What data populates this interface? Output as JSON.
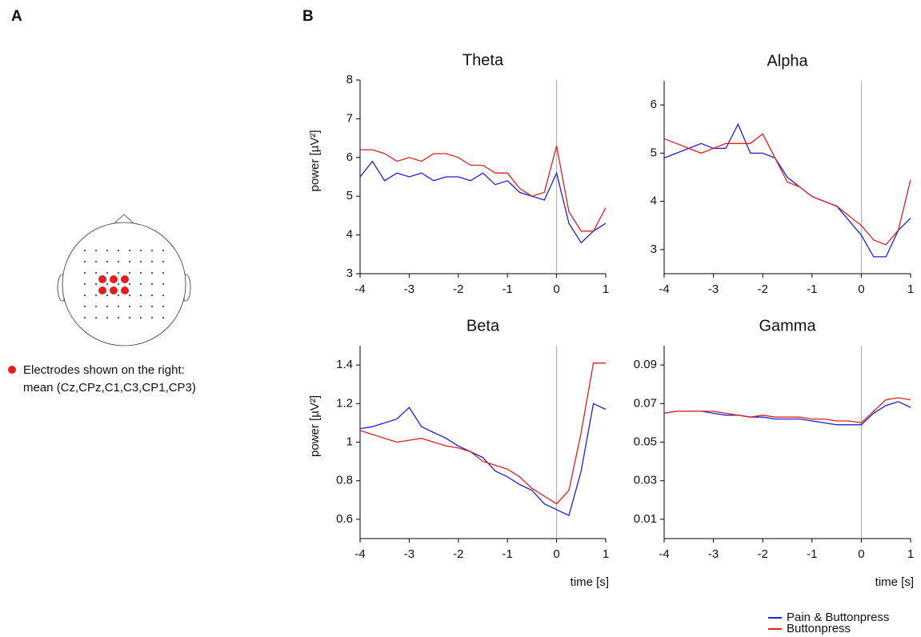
{
  "panel_a": {
    "label": "A",
    "note": [
      "Electrodes shown on the right:",
      "mean (Cz,CPz,C1,C3,CP1,CP3)"
    ]
  },
  "panel_b": {
    "label": "B"
  },
  "chart_data": [
    {
      "type": "line",
      "title": "Theta",
      "ylabel": "power [µV²]",
      "x": [
        -4,
        -3.75,
        -3.5,
        -3.25,
        -3,
        -2.75,
        -2.5,
        -2.25,
        -2,
        -1.75,
        -1.5,
        -1.25,
        -1,
        -0.75,
        -0.5,
        -0.25,
        0,
        0.25,
        0.5,
        0.75,
        1
      ],
      "xlim": [
        -4,
        1
      ],
      "xticks": [
        -4,
        -3,
        -2,
        -1,
        0,
        1
      ],
      "ylim": [
        3,
        8
      ],
      "yticks": [
        3,
        4,
        5,
        6,
        7,
        8
      ],
      "vline": 0,
      "series": [
        {
          "name": "Pain & Buttonpress",
          "color": "#1f1fd6",
          "values": [
            5.5,
            5.9,
            5.4,
            5.6,
            5.5,
            5.6,
            5.4,
            5.5,
            5.5,
            5.4,
            5.6,
            5.3,
            5.4,
            5.1,
            5.0,
            4.9,
            5.6,
            4.3,
            3.8,
            4.1,
            4.3
          ]
        },
        {
          "name": "Buttonpress",
          "color": "#e02020",
          "values": [
            6.2,
            6.2,
            6.1,
            5.9,
            6.0,
            5.9,
            6.1,
            6.1,
            6.0,
            5.8,
            5.8,
            5.6,
            5.6,
            5.2,
            5.0,
            5.1,
            6.3,
            4.6,
            4.1,
            4.1,
            4.7
          ]
        }
      ]
    },
    {
      "type": "line",
      "title": "Alpha",
      "x": [
        -4,
        -3.75,
        -3.5,
        -3.25,
        -3,
        -2.75,
        -2.5,
        -2.25,
        -2,
        -1.75,
        -1.5,
        -1.25,
        -1,
        -0.75,
        -0.5,
        -0.25,
        0,
        0.25,
        0.5,
        0.75,
        1
      ],
      "xlim": [
        -4,
        1
      ],
      "xticks": [
        -4,
        -3,
        -2,
        -1,
        0,
        1
      ],
      "ylim": [
        2.5,
        6.5
      ],
      "yticks": [
        3,
        4,
        5,
        6
      ],
      "vline": 0,
      "series": [
        {
          "color": "#1f1fd6",
          "values": [
            4.9,
            5.0,
            5.1,
            5.2,
            5.1,
            5.1,
            5.6,
            5.0,
            5.0,
            4.9,
            4.5,
            4.3,
            4.1,
            4.0,
            3.9,
            3.6,
            3.3,
            2.85,
            2.85,
            3.4,
            3.65
          ]
        },
        {
          "color": "#e02020",
          "values": [
            5.3,
            5.2,
            5.1,
            5.0,
            5.1,
            5.2,
            5.2,
            5.2,
            5.4,
            4.9,
            4.4,
            4.3,
            4.1,
            4.0,
            3.9,
            3.7,
            3.5,
            3.2,
            3.1,
            3.4,
            4.45
          ]
        }
      ]
    },
    {
      "type": "line",
      "title": "Beta",
      "ylabel": "power [µV²]",
      "xlabel": "time [s]",
      "x": [
        -4,
        -3.75,
        -3.5,
        -3.25,
        -3,
        -2.75,
        -2.5,
        -2.25,
        -2,
        -1.75,
        -1.5,
        -1.25,
        -1,
        -0.75,
        -0.5,
        -0.25,
        0,
        0.25,
        0.5,
        0.75,
        1
      ],
      "xlim": [
        -4,
        1
      ],
      "xticks": [
        -4,
        -3,
        -2,
        -1,
        0,
        1
      ],
      "ylim": [
        0.5,
        1.5
      ],
      "yticks": [
        0.6,
        0.8,
        1,
        1.2,
        1.4
      ],
      "vline": 0,
      "series": [
        {
          "color": "#1f1fd6",
          "values": [
            1.07,
            1.08,
            1.1,
            1.12,
            1.18,
            1.08,
            1.05,
            1.02,
            0.98,
            0.95,
            0.92,
            0.85,
            0.82,
            0.78,
            0.75,
            0.68,
            0.65,
            0.62,
            0.85,
            1.2,
            1.17
          ]
        },
        {
          "color": "#e02020",
          "values": [
            1.06,
            1.04,
            1.02,
            1.0,
            1.01,
            1.02,
            1.0,
            0.98,
            0.97,
            0.95,
            0.9,
            0.88,
            0.86,
            0.82,
            0.76,
            0.72,
            0.68,
            0.75,
            1.05,
            1.41,
            1.41
          ]
        }
      ]
    },
    {
      "type": "line",
      "title": "Gamma",
      "xlabel": "time [s]",
      "x": [
        -4,
        -3.75,
        -3.5,
        -3.25,
        -3,
        -2.75,
        -2.5,
        -2.25,
        -2,
        -1.75,
        -1.5,
        -1.25,
        -1,
        -0.75,
        -0.5,
        -0.25,
        0,
        0.25,
        0.5,
        0.75,
        1
      ],
      "xlim": [
        -4,
        1
      ],
      "xticks": [
        -4,
        -3,
        -2,
        -1,
        0,
        1
      ],
      "ylim": [
        0,
        0.1
      ],
      "yticks": [
        0.01,
        0.03,
        0.05,
        0.07,
        0.09
      ],
      "vline": 0,
      "series": [
        {
          "color": "#1f1fd6",
          "values": [
            0.065,
            0.066,
            0.066,
            0.066,
            0.065,
            0.064,
            0.064,
            0.063,
            0.063,
            0.062,
            0.062,
            0.062,
            0.061,
            0.06,
            0.059,
            0.059,
            0.059,
            0.065,
            0.069,
            0.071,
            0.068
          ]
        },
        {
          "color": "#e02020",
          "values": [
            0.065,
            0.066,
            0.066,
            0.066,
            0.066,
            0.065,
            0.064,
            0.063,
            0.064,
            0.063,
            0.063,
            0.063,
            0.062,
            0.062,
            0.061,
            0.061,
            0.06,
            0.066,
            0.072,
            0.073,
            0.072
          ]
        }
      ]
    }
  ]
}
